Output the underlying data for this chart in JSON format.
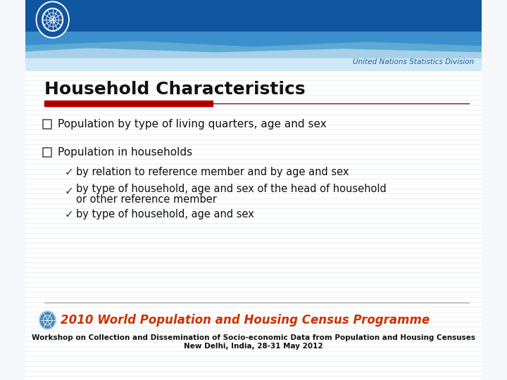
{
  "title": "Household Characteristics",
  "title_fontsize": 18,
  "title_color": "#111111",
  "un_text": "United Nations Statistics Division",
  "un_text_color": "#1a5fa8",
  "red_bar_color": "#bb0000",
  "thin_line_color": "#6b0000",
  "bullet1": "Population by type of living quarters, age and sex",
  "bullet2_main": "Population in households",
  "bullet2_sub1": "by relation to reference member and by age and sex",
  "bullet2_sub2a": "by type of household, age and sex of the head of household",
  "bullet2_sub2b": "or other reference member",
  "bullet2_sub3": "by type of household, age and sex",
  "footer_main": "2010 World Population and Housing Census Programme",
  "footer_sub1": "Workshop on Collection and Dissemination of Socio-economic Data from Population and Housing Censuses",
  "footer_sub2": "New Delhi, India, 28-31 May 2012",
  "content_bg": "#f5f7fa",
  "stripe_color": "#e2e8f0",
  "header_dark": "#1055a0",
  "header_mid": "#3a8fcc",
  "header_light": "#a8cfe8",
  "header_vlight": "#d0e8f5",
  "footer_main_color": "#cc3300",
  "footer_sub_color": "#111111",
  "divider_color": "#aaaaaa"
}
